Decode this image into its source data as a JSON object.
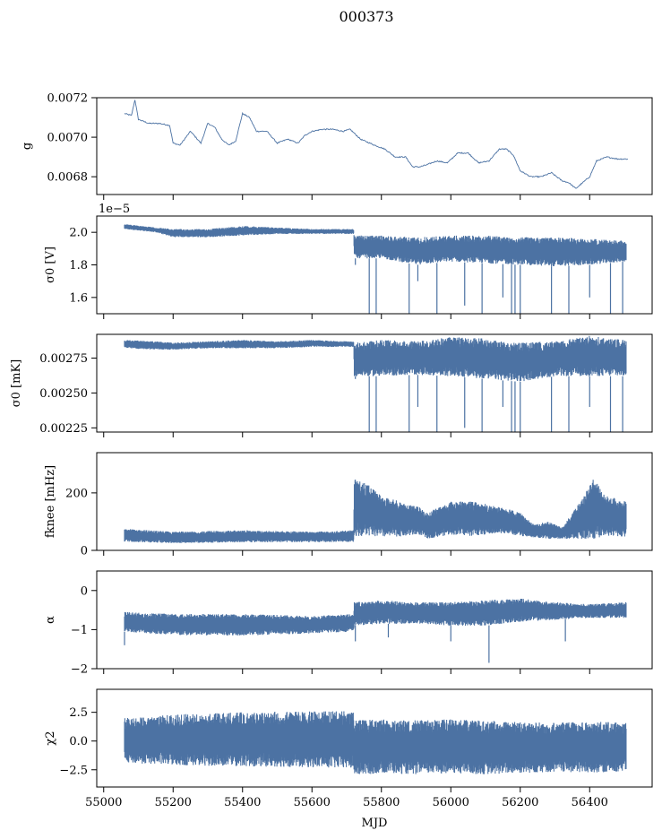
{
  "figure": {
    "title": "000373"
  },
  "chart_data": [
    {
      "type": "line",
      "ylabel": "g",
      "xlim": [
        54980,
        56580
      ],
      "ylim": [
        0.00671,
        0.0072
      ],
      "yticks": [
        0.0068,
        0.007,
        0.0072
      ],
      "ytick_labels": [
        "0.0068",
        "0.0070",
        "0.0072"
      ],
      "offset_text": "",
      "color": "#4c72a3",
      "series": [
        {
          "x": [
            55060,
            55080,
            55090,
            55100,
            55130,
            55160,
            55190,
            55200,
            55220,
            55250,
            55280,
            55300,
            55320,
            55340,
            55360,
            55380,
            55400,
            55420,
            55440,
            55470,
            55500,
            55530,
            55560,
            55580,
            55600,
            55630,
            55660,
            55690,
            55710,
            55740,
            55780,
            55810,
            55840,
            55870,
            55890,
            55910,
            55930,
            55960,
            55990,
            56020,
            56050,
            56080,
            56110,
            56140,
            56160,
            56180,
            56200,
            56230,
            56260,
            56290,
            56320,
            56340,
            56360,
            56380,
            56400,
            56420,
            56450,
            56480,
            56510
          ],
          "y": [
            0.00712,
            0.00711,
            0.00719,
            0.00709,
            0.00707,
            0.00707,
            0.00706,
            0.00697,
            0.00696,
            0.00703,
            0.00697,
            0.00707,
            0.00705,
            0.00699,
            0.00696,
            0.00698,
            0.00712,
            0.0071,
            0.00703,
            0.00703,
            0.00697,
            0.00699,
            0.00697,
            0.00701,
            0.00703,
            0.00704,
            0.00704,
            0.00703,
            0.00704,
            0.00699,
            0.00696,
            0.00694,
            0.0069,
            0.0069,
            0.00685,
            0.00685,
            0.00686,
            0.00688,
            0.00687,
            0.00692,
            0.00692,
            0.00687,
            0.00688,
            0.00694,
            0.00694,
            0.00691,
            0.00683,
            0.0068,
            0.0068,
            0.00682,
            0.00678,
            0.00677,
            0.00674,
            0.00677,
            0.0068,
            0.00688,
            0.0069,
            0.00689,
            0.00689
          ]
        }
      ]
    },
    {
      "type": "area",
      "ylabel": "σ0 [V]",
      "xlim": [
        54980,
        56580
      ],
      "ylim": [
        1.5,
        2.1
      ],
      "yticks": [
        1.6,
        1.8,
        2.0
      ],
      "ytick_labels": [
        "1.6",
        "1.8",
        "2.0"
      ],
      "offset_text": "1e−5",
      "color": "#4c72a3",
      "series": [
        {
          "x": [
            55060,
            55150,
            55200,
            55300,
            55400,
            55500,
            55600,
            55700,
            55720,
            55722,
            55800,
            55900,
            56000,
            56100,
            56200,
            56300,
            56400,
            56500,
            56505
          ],
          "upper": [
            2.05,
            2.03,
            2.02,
            2.02,
            2.04,
            2.03,
            2.02,
            2.02,
            2.02,
            1.98,
            1.98,
            1.97,
            1.98,
            1.98,
            1.97,
            1.97,
            1.96,
            1.95,
            1.95
          ],
          "lower": [
            2.02,
            2.0,
            1.97,
            1.97,
            1.98,
            1.99,
            1.99,
            1.99,
            1.99,
            1.84,
            1.84,
            1.8,
            1.82,
            1.81,
            1.8,
            1.79,
            1.8,
            1.82,
            1.82
          ]
        }
      ],
      "dips": [
        [
          55725,
          1.8
        ],
        [
          55765,
          1.5
        ],
        [
          55785,
          1.5
        ],
        [
          55880,
          1.5
        ],
        [
          55905,
          1.7
        ],
        [
          55960,
          1.5
        ],
        [
          56040,
          1.55
        ],
        [
          56090,
          1.5
        ],
        [
          56150,
          1.6
        ],
        [
          56175,
          1.5
        ],
        [
          56185,
          1.5
        ],
        [
          56200,
          1.5
        ],
        [
          56290,
          1.5
        ],
        [
          56340,
          1.5
        ],
        [
          56400,
          1.6
        ],
        [
          56460,
          1.5
        ],
        [
          56495,
          1.5
        ]
      ]
    },
    {
      "type": "area",
      "ylabel": "σ0 [mK]",
      "xlim": [
        54980,
        56580
      ],
      "ylim": [
        0.00222,
        0.00292
      ],
      "yticks": [
        0.00225,
        0.0025,
        0.00275
      ],
      "ytick_labels": [
        "0.00225",
        "0.00250",
        "0.00275"
      ],
      "offset_text": "",
      "color": "#4c72a3",
      "series": [
        {
          "x": [
            55060,
            55150,
            55200,
            55300,
            55400,
            55500,
            55600,
            55700,
            55720,
            55722,
            55800,
            55900,
            56000,
            56100,
            56200,
            56300,
            56400,
            56500,
            56505
          ],
          "upper": [
            0.00288,
            0.00287,
            0.00286,
            0.00287,
            0.00288,
            0.00287,
            0.00288,
            0.00287,
            0.00287,
            0.00286,
            0.00288,
            0.00287,
            0.0029,
            0.00289,
            0.00286,
            0.00287,
            0.00291,
            0.00288,
            0.00288
          ],
          "lower": [
            0.00282,
            0.00281,
            0.00281,
            0.00282,
            0.00282,
            0.00282,
            0.00283,
            0.00283,
            0.00283,
            0.00262,
            0.00262,
            0.00263,
            0.00262,
            0.0026,
            0.00258,
            0.00262,
            0.00262,
            0.00262,
            0.00262
          ]
        }
      ],
      "dips": [
        [
          55725,
          0.0026
        ],
        [
          55765,
          0.00222
        ],
        [
          55785,
          0.00222
        ],
        [
          55880,
          0.00222
        ],
        [
          55905,
          0.0024
        ],
        [
          55960,
          0.00222
        ],
        [
          56040,
          0.00225
        ],
        [
          56090,
          0.00222
        ],
        [
          56150,
          0.0024
        ],
        [
          56175,
          0.00222
        ],
        [
          56185,
          0.00222
        ],
        [
          56200,
          0.00222
        ],
        [
          56290,
          0.00222
        ],
        [
          56340,
          0.00222
        ],
        [
          56400,
          0.0024
        ],
        [
          56460,
          0.00222
        ],
        [
          56495,
          0.00222
        ]
      ]
    },
    {
      "type": "area",
      "ylabel": "fknee [mHz]",
      "xlim": [
        54980,
        56580
      ],
      "ylim": [
        0,
        340
      ],
      "yticks": [
        0,
        200
      ],
      "ytick_labels": [
        "0",
        "200"
      ],
      "offset_text": "",
      "color": "#4c72a3",
      "series": [
        {
          "x": [
            55060,
            55200,
            55400,
            55600,
            55720,
            55722,
            55760,
            55800,
            55880,
            55910,
            55930,
            56000,
            56060,
            56150,
            56200,
            56240,
            56280,
            56320,
            56380,
            56410,
            56450,
            56505
          ],
          "upper": [
            75,
            65,
            70,
            65,
            70,
            250,
            230,
            190,
            160,
            150,
            130,
            170,
            170,
            150,
            130,
            90,
            100,
            80,
            180,
            250,
            190,
            170
          ],
          "lower": [
            30,
            25,
            28,
            28,
            30,
            50,
            50,
            45,
            50,
            55,
            40,
            55,
            50,
            60,
            50,
            45,
            40,
            40,
            40,
            40,
            50,
            45
          ]
        }
      ],
      "dips": []
    },
    {
      "type": "area",
      "ylabel": "α",
      "xlim": [
        54980,
        56580
      ],
      "ylim": [
        -2,
        0.5
      ],
      "yticks": [
        -2,
        -1,
        0
      ],
      "ytick_labels": [
        "−2",
        "−1",
        "0"
      ],
      "offset_text": "",
      "color": "#4c72a3",
      "series": [
        {
          "x": [
            55060,
            55200,
            55400,
            55600,
            55720,
            55722,
            55800,
            55900,
            56000,
            56100,
            56200,
            56300,
            56400,
            56505
          ],
          "upper": [
            -0.55,
            -0.6,
            -0.6,
            -0.65,
            -0.6,
            -0.3,
            -0.25,
            -0.3,
            -0.3,
            -0.25,
            -0.2,
            -0.3,
            -0.35,
            -0.3
          ],
          "lower": [
            -1.05,
            -1.15,
            -1.15,
            -1.1,
            -1.05,
            -0.9,
            -0.85,
            -0.85,
            -0.9,
            -0.9,
            -0.8,
            -0.75,
            -0.7,
            -0.7
          ]
        }
      ],
      "dips": [
        [
          55060,
          -1.4
        ],
        [
          55725,
          -1.3
        ],
        [
          55820,
          -1.2
        ],
        [
          56000,
          -1.3
        ],
        [
          56110,
          -1.85
        ],
        [
          56330,
          -1.3
        ]
      ]
    },
    {
      "type": "area",
      "ylabel": "χ2",
      "xlim": [
        54980,
        56580
      ],
      "ylim": [
        -4,
        4.5
      ],
      "yticks": [
        -2.5,
        0.0,
        2.5
      ],
      "ytick_labels": [
        "−2.5",
        "0.0",
        "2.5"
      ],
      "offset_text": "",
      "color": "#4c72a3",
      "series": [
        {
          "x": [
            55060,
            55200,
            55400,
            55600,
            55720,
            55722,
            55800,
            55900,
            56000,
            56100,
            56200,
            56300,
            56400,
            56505
          ],
          "upper": [
            2.0,
            2.3,
            2.5,
            2.6,
            2.6,
            1.8,
            1.9,
            1.8,
            1.9,
            1.8,
            1.7,
            1.6,
            1.7,
            1.6
          ],
          "lower": [
            -1.9,
            -2.1,
            -2.2,
            -2.3,
            -2.4,
            -3.0,
            -2.8,
            -2.9,
            -2.8,
            -2.9,
            -2.8,
            -2.7,
            -2.8,
            -2.6
          ]
        }
      ],
      "dips": []
    }
  ],
  "xaxis": {
    "label": "MJD",
    "ticks": [
      55000,
      55200,
      55400,
      55600,
      55800,
      56000,
      56200,
      56400
    ],
    "tick_labels": [
      "55000",
      "55200",
      "55400",
      "55600",
      "55800",
      "56000",
      "56200",
      "56400"
    ]
  }
}
